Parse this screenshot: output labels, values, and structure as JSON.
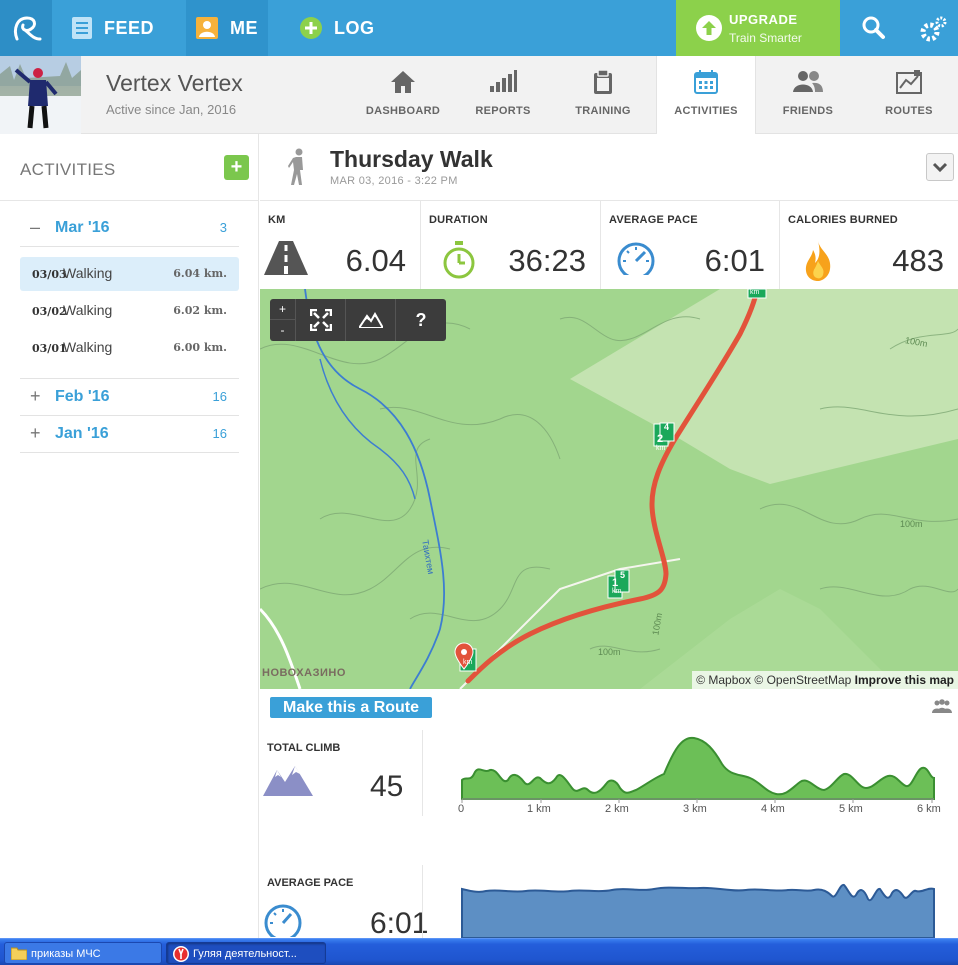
{
  "nav": {
    "feed": "FEED",
    "me": "ME",
    "log": "LOG",
    "upgrade_title": "UPGRADE",
    "upgrade_sub": "Train Smarter"
  },
  "profile": {
    "name": "Vertex Vertex",
    "since": "Active since Jan, 2016"
  },
  "tabs": [
    {
      "label": "DASHBOARD"
    },
    {
      "label": "REPORTS"
    },
    {
      "label": "TRAINING"
    },
    {
      "label": "ACTIVITIES",
      "active": true
    },
    {
      "label": "FRIENDS"
    },
    {
      "label": "ROUTES"
    }
  ],
  "sidebar": {
    "title": "ACTIVITIES",
    "add_label": "+",
    "months": [
      {
        "toggle": "–",
        "label": "Mar '16",
        "count": "3"
      },
      {
        "toggle": "+",
        "label": "Feb '16",
        "count": "16"
      },
      {
        "toggle": "+",
        "label": "Jan '16",
        "count": "16"
      }
    ],
    "activities": [
      {
        "date": "03/03",
        "type": "Walking",
        "distance": "6.04 km."
      },
      {
        "date": "03/02",
        "type": "Walking",
        "distance": "6.02 km."
      },
      {
        "date": "03/01",
        "type": "Walking",
        "distance": "6.00 km."
      }
    ]
  },
  "activity": {
    "title": "Thursday Walk",
    "date": "MAR 03, 2016  -  3:22 PM"
  },
  "stats": [
    {
      "label": "KM",
      "value": "6.04"
    },
    {
      "label": "DURATION",
      "value": "36:23"
    },
    {
      "label": "AVERAGE PACE",
      "value": "6:01"
    },
    {
      "label": "CALORIES BURNED",
      "value": "483"
    }
  ],
  "map": {
    "zoom_in": "+",
    "zoom_out": "-",
    "help": "?",
    "labels": {
      "town": "НОВОХАЗИНО",
      "river": "Таихтем",
      "contour": "100m",
      "km_1": "1",
      "km_2": "2",
      "km_4": "4",
      "km_5": "5",
      "km_unit": "km"
    },
    "attribution_mapbox": "© Mapbox",
    "attribution_osm": "© OpenStreetMap",
    "attribution_improve": "Improve this map"
  },
  "route_button": "Make this a Route",
  "climb": {
    "label": "TOTAL CLIMB",
    "value": "45",
    "ticks": [
      "0",
      "1 km",
      "2 km",
      "3 km",
      "4 km",
      "5 km",
      "6 km"
    ]
  },
  "pace": {
    "label": "AVERAGE PACE",
    "value": "6:01"
  },
  "colors": {
    "brand_blue": "#3aa0d8",
    "upgrade_green": "#8cd14b",
    "route_red": "#e2533b",
    "climb_green": "#6cbf57",
    "pace_blue": "#5d8fc4"
  },
  "taskbar": [
    {
      "label": "приказы МЧС"
    },
    {
      "label": "Гуляя деятельност..."
    }
  ]
}
